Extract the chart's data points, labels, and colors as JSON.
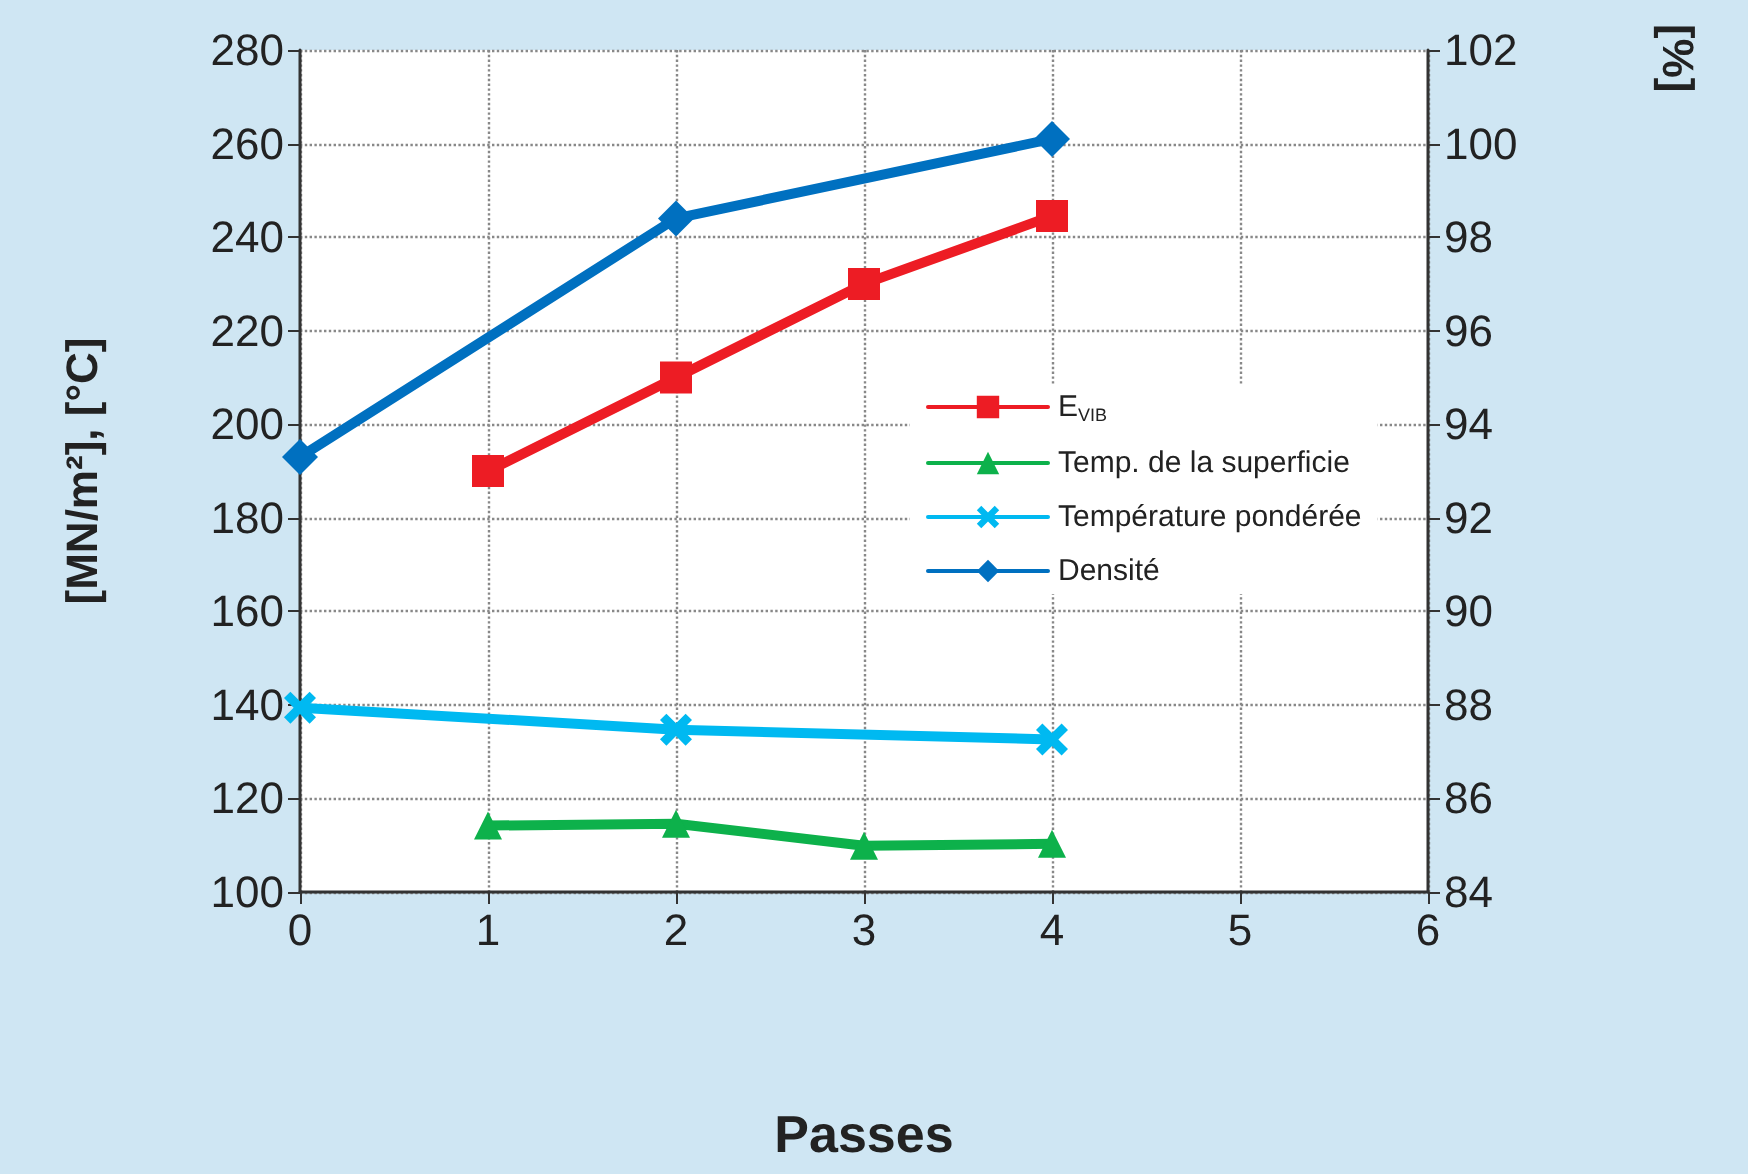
{
  "chart_data": {
    "type": "line",
    "xlabel": "Passes",
    "ylabel": "[MN/m²], [°C]",
    "y2label": "[%]",
    "xlim": [
      0,
      6
    ],
    "xticks": [
      0,
      1,
      2,
      3,
      4,
      5,
      6
    ],
    "ylim": [
      100,
      280
    ],
    "yticks": [
      100,
      120,
      140,
      160,
      180,
      200,
      220,
      240,
      260,
      280
    ],
    "y2lim": [
      84,
      102
    ],
    "y2ticks": [
      84,
      86,
      88,
      90,
      92,
      94,
      96,
      98,
      100,
      102
    ],
    "grid": true,
    "legend": "right",
    "line_style": "solid",
    "series": [
      {
        "name": "E$_{VIB}$",
        "color": "#ed1c24",
        "marker": "square",
        "x": [
          1,
          2,
          3,
          4
        ],
        "values": [
          190,
          210,
          230,
          244.5
        ]
      },
      {
        "name": "Temp. de la superficie",
        "color": "#0db14b",
        "marker": "triangle",
        "x": [
          1,
          2,
          3,
          4
        ],
        "values": [
          114.2,
          114.6,
          109.9,
          110.3
        ]
      },
      {
        "name": "Température pondérée",
        "color": "#00b9f1",
        "marker": "cross",
        "x": [
          0,
          2,
          4
        ],
        "values": [
          139.4,
          134.7,
          132.6
        ]
      },
      {
        "name": "Densité",
        "color": "#0070c0",
        "marker": "diamond",
        "axis": "y2",
        "x": [
          0,
          2,
          4
        ],
        "values": [
          93.3,
          98.4,
          100.1
        ]
      }
    ]
  }
}
